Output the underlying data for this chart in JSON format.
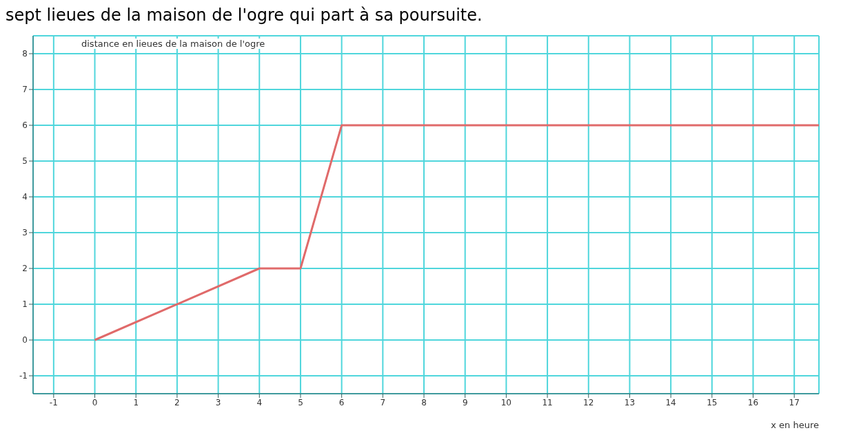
{
  "chart_data": {
    "type": "line",
    "title": "sept lieues de la maison de l'ogre qui part à sa poursuite.",
    "xlabel": "x en heure",
    "ylabel": "distance en lieues de la maison de l'ogre",
    "x": [
      0,
      4,
      5,
      6,
      17.6
    ],
    "series": [
      {
        "color": "#e06a6a",
        "values": [
          0,
          2,
          2,
          6,
          6
        ]
      }
    ],
    "xlim": [
      -1.5,
      17.6
    ],
    "ylim": [
      -1.5,
      8.5
    ],
    "xticks": [
      -1,
      0,
      1,
      2,
      3,
      4,
      5,
      6,
      7,
      8,
      9,
      10,
      11,
      12,
      13,
      14,
      15,
      16,
      17
    ],
    "yticks": [
      -1,
      0,
      1,
      2,
      3,
      4,
      5,
      6,
      7,
      8
    ],
    "grid": true,
    "marker": "none",
    "line_style": "solid",
    "legend": false
  }
}
